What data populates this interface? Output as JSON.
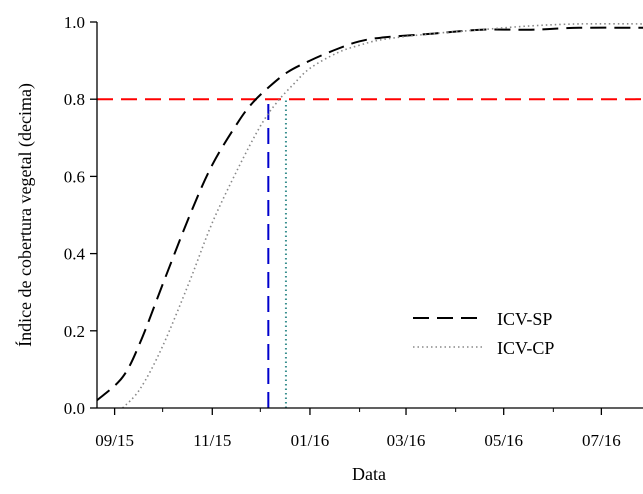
{
  "chart_data": {
    "type": "line",
    "title": "",
    "xlabel": "Data",
    "ylabel": "Índice de cobertura vegetal (decima)",
    "x_type": "date",
    "xlim": [
      "2015-09-04",
      "2016-08-10"
    ],
    "ylim": [
      0,
      1
    ],
    "grid": false,
    "legend_position": "center-right",
    "x_ticks": [
      {
        "date": "2015-09-15",
        "label": "09/15"
      },
      {
        "date": "2015-11-15",
        "label": "11/15"
      },
      {
        "date": "2016-01-15",
        "label": "01/16"
      },
      {
        "date": "2016-03-15",
        "label": "03/16"
      },
      {
        "date": "2016-05-15",
        "label": "05/16"
      },
      {
        "date": "2016-07-15",
        "label": "07/16"
      }
    ],
    "y_ticks": [
      {
        "value": 0.0,
        "label": "0.0"
      },
      {
        "value": 0.2,
        "label": "0.2"
      },
      {
        "value": 0.4,
        "label": "0.4"
      },
      {
        "value": 0.6,
        "label": "0.6"
      },
      {
        "value": 0.8,
        "label": "0.8"
      },
      {
        "value": 1.0,
        "label": "1.0"
      }
    ],
    "series": [
      {
        "name": "ICV-SP",
        "color": "#000000",
        "style": "dashed",
        "x": [
          "2015-09-04",
          "2015-09-20",
          "2015-10-01",
          "2015-10-15",
          "2015-11-01",
          "2015-11-15",
          "2015-12-01",
          "2015-12-10",
          "2015-12-20",
          "2016-01-01",
          "2016-01-15",
          "2016-02-01",
          "2016-02-15",
          "2016-03-01",
          "2016-04-01",
          "2016-05-01",
          "2016-06-01",
          "2016-07-01",
          "2016-08-10"
        ],
        "y": [
          0.02,
          0.08,
          0.17,
          0.32,
          0.5,
          0.63,
          0.74,
          0.79,
          0.83,
          0.87,
          0.9,
          0.93,
          0.95,
          0.96,
          0.97,
          0.98,
          0.98,
          0.985,
          0.985
        ]
      },
      {
        "name": "ICV-CP",
        "color": "#888888",
        "style": "dotted",
        "x": [
          "2015-09-20",
          "2015-10-01",
          "2015-10-15",
          "2015-11-01",
          "2015-11-15",
          "2015-12-01",
          "2015-12-15",
          "2015-12-25",
          "2016-01-05",
          "2016-01-15",
          "2016-02-01",
          "2016-02-15",
          "2016-03-01",
          "2016-04-01",
          "2016-05-01",
          "2016-06-01",
          "2016-07-01",
          "2016-08-10"
        ],
        "y": [
          0.0,
          0.05,
          0.16,
          0.33,
          0.48,
          0.62,
          0.73,
          0.79,
          0.84,
          0.88,
          0.92,
          0.94,
          0.955,
          0.97,
          0.98,
          0.99,
          0.995,
          0.995
        ]
      }
    ],
    "reference_lines": [
      {
        "orientation": "horizontal",
        "y": 0.8,
        "color": "#ff0000",
        "style": "dashed"
      },
      {
        "orientation": "vertical",
        "x": "2015-12-20",
        "y_from": 0,
        "y_to": 0.8,
        "color": "#0000cc",
        "style": "dashed"
      },
      {
        "orientation": "vertical",
        "x": "2015-12-31",
        "y_from": 0,
        "y_to": 0.8,
        "color": "#3a8f8f",
        "style": "dotted"
      }
    ]
  }
}
